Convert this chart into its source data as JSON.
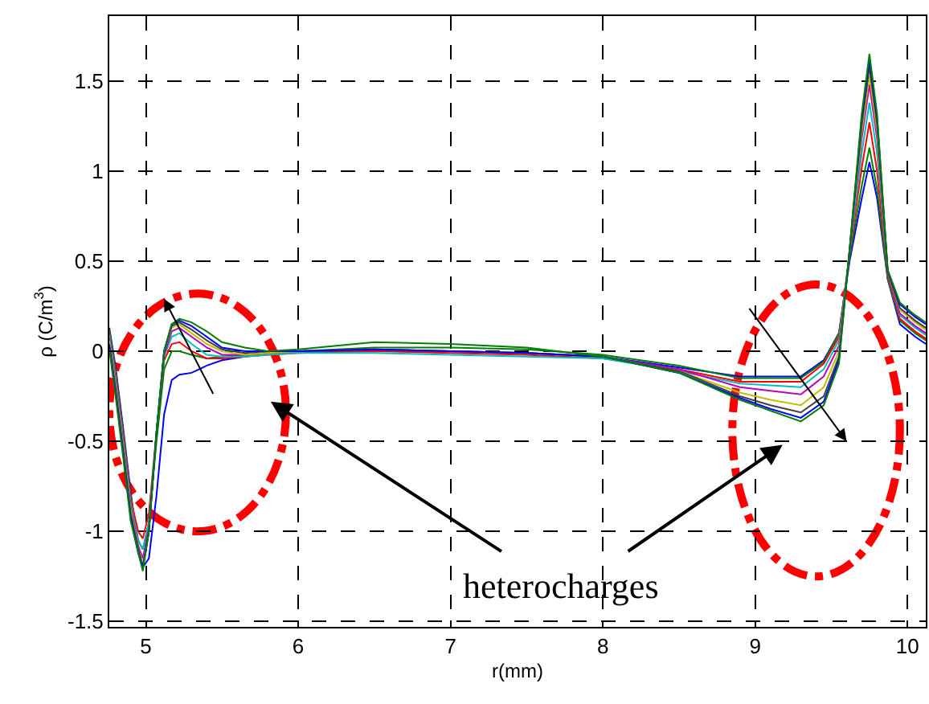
{
  "chart_data": {
    "type": "line",
    "xlabel": "r(mm)",
    "ylabel": "ρ (C/m$^{3}$)",
    "annotations": [
      "heterocharges"
    ],
    "x": [
      4.76,
      4.8,
      4.85,
      4.9,
      4.95,
      4.98,
      5.02,
      5.07,
      5.12,
      5.17,
      5.22,
      5.3,
      5.4,
      5.5,
      5.65,
      5.8,
      6.0,
      6.5,
      7.0,
      7.5,
      8.0,
      8.5,
      8.9,
      9.1,
      9.3,
      9.45,
      9.55,
      9.62,
      9.7,
      9.75,
      9.8,
      9.87,
      9.95,
      10.05,
      10.12
    ],
    "series": [
      {
        "color": "#0000ff",
        "values": [
          0.13,
          -0.08,
          -0.42,
          -0.78,
          -1.1,
          -1.2,
          -1.15,
          -0.8,
          -0.35,
          -0.16,
          -0.13,
          -0.12,
          -0.08,
          -0.05,
          -0.03,
          -0.01,
          0.0,
          0.0,
          0.0,
          -0.01,
          -0.03,
          -0.09,
          -0.14,
          -0.14,
          -0.14,
          -0.05,
          0.1,
          0.5,
          0.85,
          1.05,
          0.85,
          0.4,
          0.15,
          0.08,
          0.04
        ]
      },
      {
        "color": "#008000",
        "values": [
          0.12,
          -0.1,
          -0.44,
          -0.8,
          -1.05,
          -1.1,
          -0.95,
          -0.5,
          -0.1,
          0.0,
          0.0,
          -0.02,
          -0.04,
          -0.03,
          -0.02,
          -0.01,
          0.0,
          0.02,
          0.02,
          0.01,
          -0.02,
          -0.08,
          -0.15,
          -0.15,
          -0.15,
          -0.06,
          0.1,
          0.52,
          0.92,
          1.13,
          0.9,
          0.4,
          0.17,
          0.1,
          0.06
        ]
      },
      {
        "color": "#ff0000",
        "values": [
          0.1,
          -0.12,
          -0.46,
          -0.82,
          -1.0,
          -1.04,
          -0.9,
          -0.45,
          -0.05,
          0.04,
          0.05,
          0.0,
          -0.04,
          -0.04,
          -0.03,
          -0.02,
          -0.01,
          0.0,
          -0.01,
          -0.02,
          -0.04,
          -0.1,
          -0.17,
          -0.17,
          -0.17,
          -0.07,
          0.08,
          0.54,
          1.02,
          1.27,
          1.0,
          0.42,
          0.18,
          0.11,
          0.07
        ]
      },
      {
        "color": "#00bfbf",
        "values": [
          0.09,
          -0.14,
          -0.48,
          -0.84,
          -1.05,
          -1.1,
          -0.95,
          -0.45,
          -0.03,
          0.08,
          0.1,
          0.04,
          -0.02,
          -0.03,
          -0.03,
          -0.02,
          -0.01,
          -0.01,
          -0.02,
          -0.03,
          -0.04,
          -0.11,
          -0.18,
          -0.19,
          -0.2,
          -0.1,
          0.06,
          0.55,
          1.1,
          1.38,
          1.1,
          0.43,
          0.2,
          0.13,
          0.09
        ]
      },
      {
        "color": "#bf00bf",
        "values": [
          0.07,
          -0.16,
          -0.5,
          -0.86,
          -1.08,
          -1.15,
          -0.98,
          -0.45,
          -0.02,
          0.11,
          0.13,
          0.08,
          0.02,
          -0.02,
          -0.02,
          -0.01,
          0.0,
          0.01,
          0.0,
          -0.01,
          -0.03,
          -0.1,
          -0.2,
          -0.22,
          -0.24,
          -0.14,
          0.03,
          0.55,
          1.18,
          1.48,
          1.18,
          0.43,
          0.21,
          0.14,
          0.1
        ]
      },
      {
        "color": "#bfbf00",
        "values": [
          0.06,
          -0.18,
          -0.52,
          -0.88,
          -1.1,
          -1.18,
          -1.0,
          -0.45,
          0.0,
          0.13,
          0.15,
          0.1,
          0.04,
          0.0,
          -0.02,
          -0.01,
          0.0,
          0.01,
          0.0,
          -0.01,
          -0.03,
          -0.11,
          -0.23,
          -0.27,
          -0.3,
          -0.2,
          0.0,
          0.55,
          1.22,
          1.53,
          1.22,
          0.44,
          0.23,
          0.16,
          0.12
        ]
      },
      {
        "color": "#404040",
        "values": [
          0.04,
          -0.2,
          -0.54,
          -0.9,
          -1.1,
          -1.2,
          -1.0,
          -0.45,
          0.0,
          0.14,
          0.16,
          0.12,
          0.06,
          0.01,
          -0.01,
          0.0,
          0.0,
          0.01,
          0.0,
          -0.01,
          -0.03,
          -0.11,
          -0.25,
          -0.3,
          -0.34,
          -0.25,
          -0.03,
          0.56,
          1.26,
          1.58,
          1.26,
          0.44,
          0.24,
          0.17,
          0.13
        ]
      },
      {
        "color": "#0000ff",
        "values": [
          0.03,
          -0.22,
          -0.56,
          -0.92,
          -1.12,
          -1.2,
          -1.0,
          -0.45,
          0.0,
          0.15,
          0.17,
          0.14,
          0.08,
          0.02,
          0.0,
          0.0,
          0.0,
          0.01,
          0.0,
          -0.01,
          -0.03,
          -0.12,
          -0.26,
          -0.32,
          -0.37,
          -0.28,
          -0.05,
          0.56,
          1.3,
          1.62,
          1.3,
          0.45,
          0.26,
          0.19,
          0.15
        ]
      },
      {
        "color": "#008000",
        "values": [
          0.01,
          -0.24,
          -0.58,
          -0.94,
          -1.12,
          -1.22,
          -1.0,
          -0.45,
          0.0,
          0.15,
          0.18,
          0.16,
          0.11,
          0.05,
          0.02,
          0.0,
          0.01,
          0.05,
          0.04,
          0.02,
          -0.03,
          -0.12,
          -0.27,
          -0.33,
          -0.39,
          -0.3,
          -0.07,
          0.57,
          1.32,
          1.65,
          1.32,
          0.45,
          0.27,
          0.2,
          0.16
        ]
      }
    ],
    "xlim": [
      4.76,
      10.12
    ],
    "ylim": [
      -1.53,
      1.86
    ],
    "xticks": [
      5,
      6,
      7,
      8,
      9,
      10
    ],
    "yticks": [
      -1.5,
      -1,
      -0.5,
      0,
      0.5,
      1,
      1.5
    ],
    "grid": true,
    "marker": "none",
    "line_style": "solid"
  }
}
